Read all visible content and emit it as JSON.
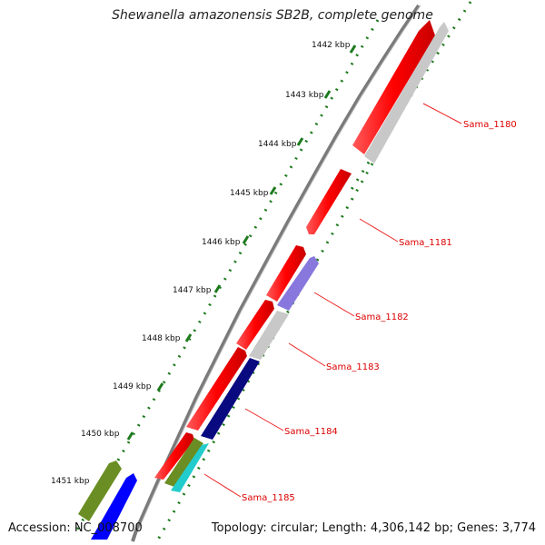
{
  "map": {
    "title": "Shewanella amazonensis SB2B, complete genome",
    "accession": "Accession: NC_008700",
    "topology": "Topology: circular; Length: 4,306,142 bp; Genes: 3,774"
  },
  "ticks": [
    "1442 kbp",
    "1443 kbp",
    "1444 kbp",
    "1445 kbp",
    "1446 kbp",
    "1447 kbp",
    "1448 kbp",
    "1449 kbp",
    "1450 kbp",
    "1451 kbp"
  ],
  "genes": [
    "Sama_1180",
    "Sama_1181",
    "Sama_1182",
    "Sama_1183",
    "Sama_1184",
    "Sama_1185"
  ],
  "colors": {
    "forward_cds": "#ff0000",
    "backbone": "#7f7f7f",
    "tick": "#1c7a1c",
    "label": "#dd0000",
    "leader": "#ee2222",
    "cog_gray": "#c8c8c8",
    "cog_purple": "#8877dd",
    "cog_navy": "#0a0a80",
    "cog_cyan": "#22cccc",
    "cog_olive": "#6a8e23",
    "cog_blue": "#0000ff"
  }
}
